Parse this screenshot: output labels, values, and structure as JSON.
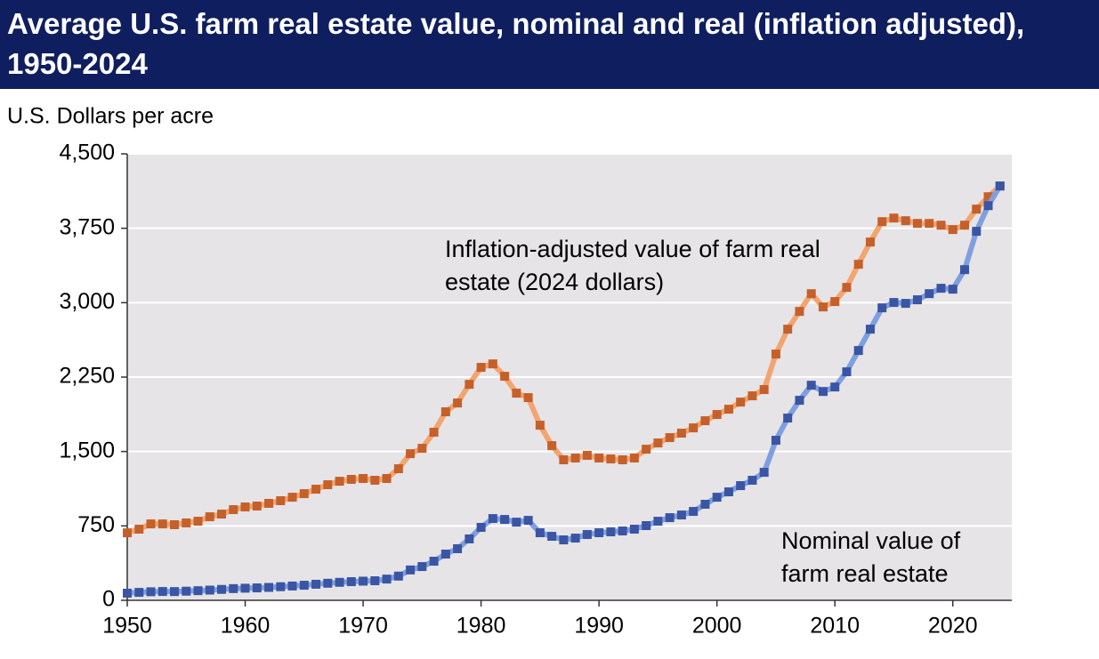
{
  "chart_data": {
    "type": "line",
    "title": "Average U.S. farm real estate value, nominal and real (inflation adjusted), 1950-2024",
    "y_label": "U.S. Dollars per acre",
    "annotations": [
      "Inflation-adjusted value of farm real estate (2024 dollars)",
      "Nominal value of farm real estate"
    ],
    "x": [
      1950,
      1951,
      1952,
      1953,
      1954,
      1955,
      1956,
      1957,
      1958,
      1959,
      1960,
      1961,
      1962,
      1963,
      1964,
      1965,
      1966,
      1967,
      1968,
      1969,
      1970,
      1971,
      1972,
      1973,
      1974,
      1975,
      1976,
      1977,
      1978,
      1979,
      1980,
      1981,
      1982,
      1983,
      1984,
      1985,
      1986,
      1987,
      1988,
      1989,
      1990,
      1991,
      1992,
      1993,
      1994,
      1995,
      1996,
      1997,
      1998,
      1999,
      2000,
      2001,
      2002,
      2003,
      2004,
      2005,
      2006,
      2007,
      2008,
      2009,
      2010,
      2011,
      2012,
      2013,
      2014,
      2015,
      2016,
      2017,
      2018,
      2019,
      2020,
      2021,
      2022,
      2023,
      2024
    ],
    "series": [
      {
        "name": "Inflation-adjusted value of farm real estate (2024 dollars)",
        "color": "#c5602a",
        "line_color": "#f2a570",
        "values": [
          680,
          717,
          770,
          770,
          762,
          780,
          797,
          842,
          869,
          914,
          941,
          950,
          977,
          1004,
          1039,
          1075,
          1120,
          1165,
          1200,
          1219,
          1228,
          1210,
          1228,
          1326,
          1478,
          1532,
          1694,
          1900,
          1989,
          2177,
          2348,
          2383,
          2258,
          2088,
          2043,
          1765,
          1559,
          1416,
          1434,
          1461,
          1434,
          1425,
          1416,
          1434,
          1523,
          1586,
          1640,
          1685,
          1738,
          1810,
          1873,
          1926,
          1998,
          2061,
          2124,
          2482,
          2733,
          2912,
          3091,
          2957,
          3011,
          3154,
          3387,
          3611,
          3817,
          3853,
          3826,
          3799,
          3799,
          3781,
          3737,
          3781,
          3943,
          4068,
          4176
        ]
      },
      {
        "name": "Nominal value of farm real estate",
        "color": "#3a55a4",
        "line_color": "#7f9fe0",
        "values": [
          72,
          80,
          86,
          89,
          88,
          92,
          97,
          103,
          110,
          118,
          122,
          125,
          130,
          137,
          144,
          152,
          162,
          172,
          181,
          188,
          193,
          197,
          214,
          244,
          306,
          340,
          394,
          466,
          520,
          619,
          735,
          824,
          815,
          788,
          806,
          681,
          645,
          609,
          627,
          663,
          681,
          690,
          699,
          717,
          753,
          797,
          833,
          860,
          896,
          968,
          1039,
          1093,
          1156,
          1210,
          1290,
          1613,
          1837,
          2016,
          2168,
          2105,
          2150,
          2303,
          2518,
          2733,
          2948,
          3002,
          2993,
          3029,
          3091,
          3145,
          3136,
          3333,
          3719,
          3978,
          4176
        ]
      }
    ],
    "xlim": [
      1950,
      2025
    ],
    "ylim": [
      0,
      4500
    ],
    "xticks": [
      1950,
      1960,
      1970,
      1980,
      1990,
      2000,
      2010,
      2020
    ],
    "yticks": [
      0,
      {
        "value": 750,
        "label": "750"
      },
      {
        "value": 1500,
        "label": "1,500"
      },
      {
        "value": 2250,
        "label": "2,250"
      },
      {
        "value": 3000,
        "label": "3,000"
      },
      {
        "value": 3750,
        "label": "3,750"
      },
      {
        "value": 4500,
        "label": "4,500"
      }
    ],
    "grid": true
  }
}
